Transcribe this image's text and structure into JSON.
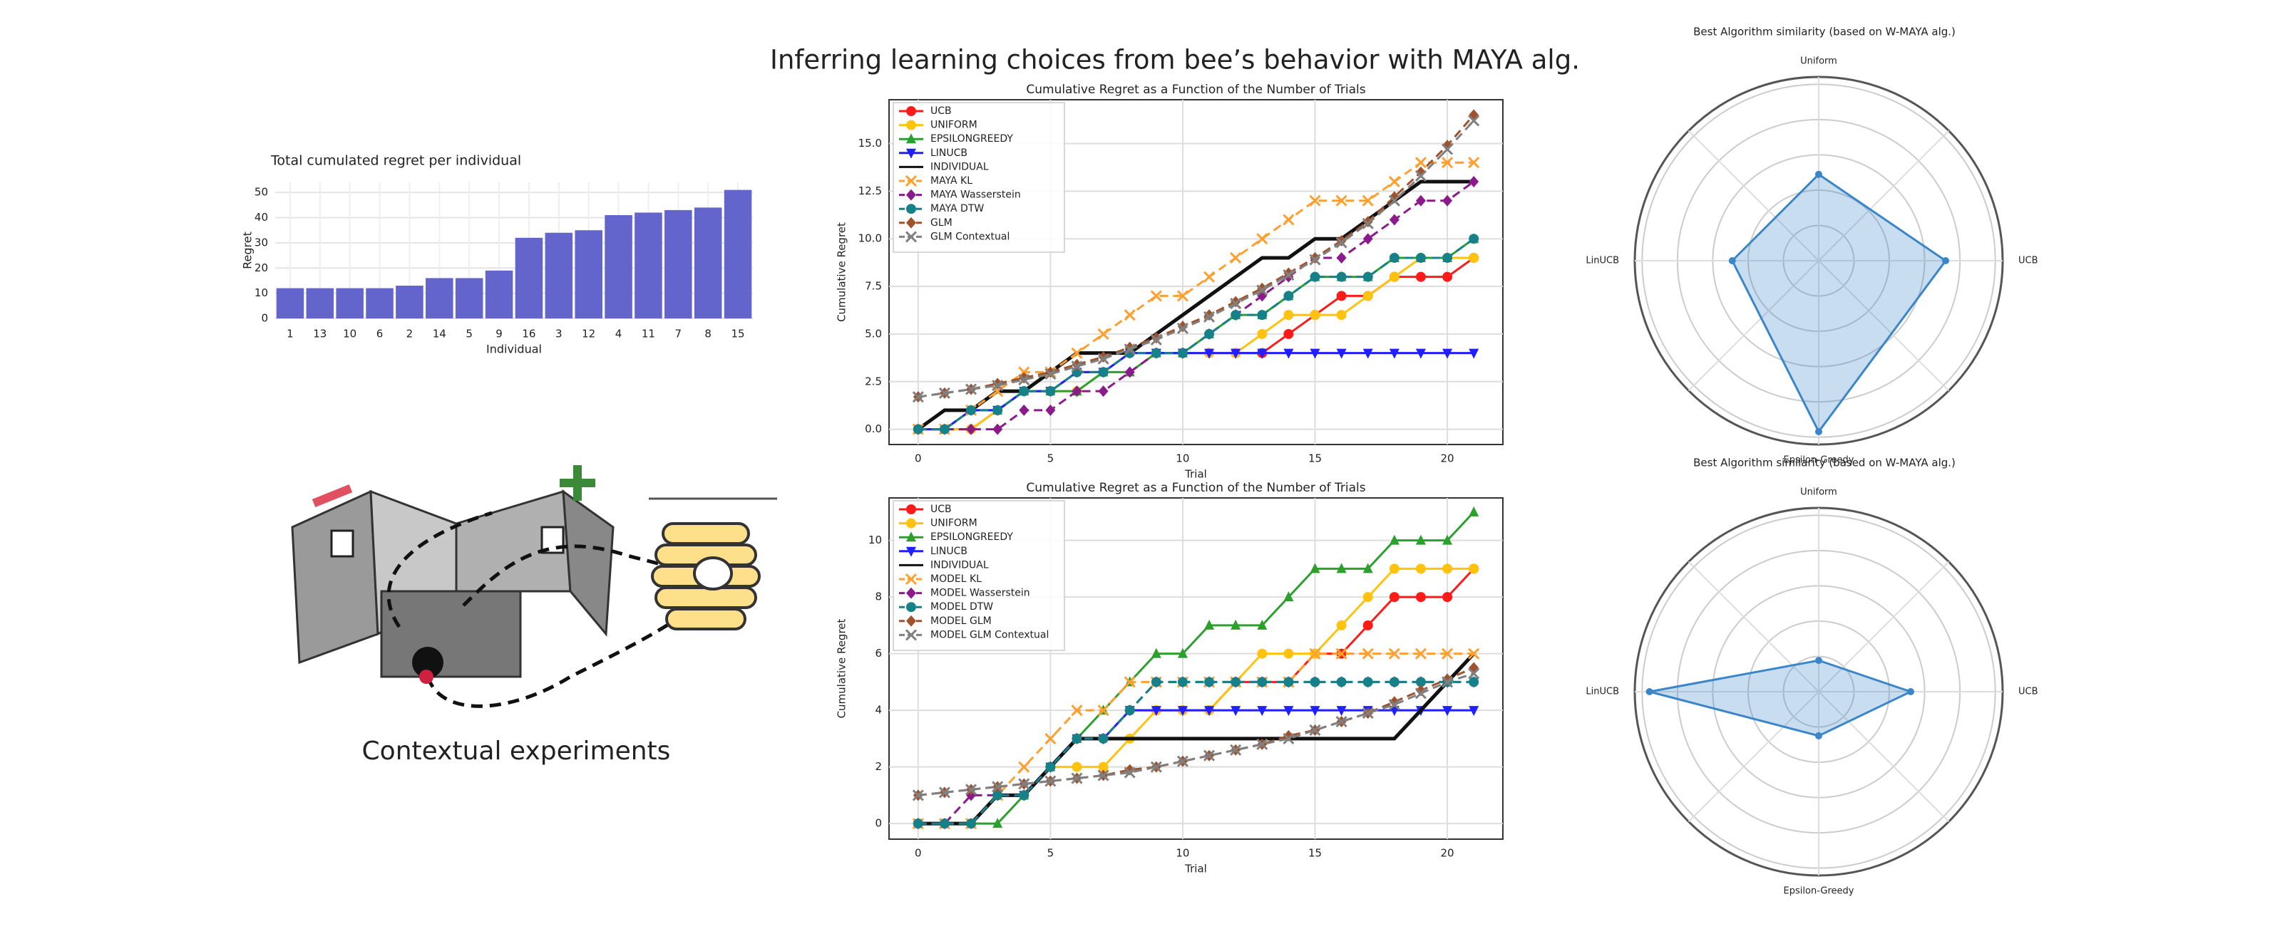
{
  "header": {
    "title": "Inferring learning choices from bee’s behavior with MAYA alg.",
    "caption": "Contextual experiments"
  },
  "chart_data": [
    {
      "type": "bar",
      "title": "Total cumulated regret per individual",
      "xlabel": "Individual",
      "ylabel": "Regret",
      "categories": [
        "1",
        "13",
        "10",
        "6",
        "2",
        "14",
        "5",
        "9",
        "16",
        "3",
        "12",
        "4",
        "11",
        "7",
        "8",
        "15"
      ],
      "values": [
        12,
        12,
        12,
        12,
        13,
        16,
        16,
        19,
        32,
        34,
        35,
        41,
        42,
        43,
        44,
        51
      ],
      "color": "#6464cd",
      "ylim": [
        0,
        54
      ],
      "yticks": [
        0,
        10,
        20,
        30,
        40,
        50
      ],
      "grid": true
    },
    {
      "type": "line",
      "title": "Cumulative Regret as a Function of the Number of Trials",
      "xlabel": "Trial",
      "ylabel": "Cumulative Regret",
      "x": [
        0,
        1,
        2,
        3,
        4,
        5,
        6,
        7,
        8,
        9,
        10,
        11,
        12,
        13,
        14,
        15,
        16,
        17,
        18,
        19,
        20,
        21
      ],
      "xlim": [
        -1.1,
        22.1
      ],
      "xticks": [
        0,
        5,
        10,
        15,
        20
      ],
      "ylim": [
        -0.8,
        17.3
      ],
      "yticks": [
        {
          "value": 0,
          "label": "0.0"
        },
        2.5,
        {
          "value": 5,
          "label": "5.0"
        },
        7.5,
        {
          "value": 10,
          "label": "10.0"
        },
        12.5,
        {
          "value": 15,
          "label": "15.0"
        }
      ],
      "grid": true,
      "legend": "upper left",
      "series": [
        {
          "name": "UCB",
          "color": "#ff1a1a",
          "line_style": "solid",
          "marker": "circle",
          "values": [
            0,
            0,
            0,
            1,
            2,
            2,
            3,
            3,
            4,
            4,
            4,
            4,
            4,
            4,
            5,
            6,
            7,
            7,
            8,
            8,
            8,
            9
          ]
        },
        {
          "name": "UNIFORM",
          "color": "#ffc20e",
          "line_style": "solid",
          "marker": "circle",
          "values": [
            0,
            0,
            0,
            1,
            2,
            2,
            2,
            3,
            4,
            4,
            4,
            4,
            4,
            5,
            6,
            6,
            6,
            7,
            8,
            9,
            9,
            9
          ]
        },
        {
          "name": "EPSILONGREEDY",
          "color": "#2ca02c",
          "line_style": "solid",
          "marker": "triangle-up",
          "values": [
            0,
            0,
            1,
            1,
            2,
            2,
            2,
            3,
            3,
            4,
            4,
            5,
            6,
            6,
            7,
            8,
            8,
            8,
            9,
            9,
            9,
            10
          ]
        },
        {
          "name": "LINUCB",
          "color": "#1f1fff",
          "line_style": "solid",
          "marker": "triangle-down",
          "values": [
            0,
            0,
            1,
            1,
            2,
            2,
            3,
            3,
            4,
            4,
            4,
            4,
            4,
            4,
            4,
            4,
            4,
            4,
            4,
            4,
            4,
            4
          ]
        },
        {
          "name": "INDIVIDUAL",
          "color": "#111111",
          "line_style": "solid",
          "marker": "none",
          "values": [
            0,
            1,
            1,
            2,
            2,
            3,
            4,
            4,
            4,
            5,
            6,
            7,
            8,
            9,
            9,
            10,
            10,
            11,
            12,
            13,
            13,
            13
          ]
        },
        {
          "name": "MAYA KL",
          "color": "#ff9f2e",
          "line_style": "dashed",
          "marker": "x",
          "values": [
            0,
            0,
            1,
            2,
            3,
            3,
            4,
            5,
            6,
            7,
            7,
            8,
            9,
            10,
            11,
            12,
            12,
            12,
            13,
            14,
            14,
            14
          ]
        },
        {
          "name": "MAYA Wasserstein",
          "color": "#8b1a8b",
          "line_style": "dashed",
          "marker": "diamond",
          "values": [
            0,
            0,
            0,
            0,
            1,
            1,
            2,
            2,
            3,
            4,
            4,
            5,
            6,
            7,
            8,
            9,
            9,
            10,
            11,
            12,
            12,
            13
          ]
        },
        {
          "name": "MAYA DTW",
          "color": "#17818a",
          "line_style": "dashed",
          "marker": "circle",
          "values": [
            0,
            0,
            1,
            1,
            2,
            2,
            3,
            3,
            4,
            4,
            4,
            5,
            6,
            6,
            7,
            8,
            8,
            8,
            9,
            9,
            9,
            10
          ]
        },
        {
          "name": "GLM",
          "color": "#a0522d",
          "line_style": "dashed",
          "marker": "diamond",
          "values": [
            1.7,
            1.9,
            2.1,
            2.4,
            2.7,
            3.0,
            3.4,
            3.8,
            4.3,
            4.8,
            5.4,
            6.0,
            6.7,
            7.4,
            8.2,
            9.0,
            9.9,
            10.9,
            12.2,
            13.5,
            14.9,
            16.5
          ]
        },
        {
          "name": "GLM Contextual",
          "color": "#808080",
          "line_style": "dashed",
          "marker": "x",
          "values": [
            1.7,
            1.9,
            2.1,
            2.3,
            2.6,
            2.9,
            3.3,
            3.7,
            4.2,
            4.7,
            5.3,
            5.9,
            6.6,
            7.3,
            8.1,
            8.9,
            9.8,
            10.8,
            12.0,
            13.3,
            14.7,
            16.2
          ]
        }
      ]
    },
    {
      "type": "line",
      "title": "Cumulative Regret as a Function of the Number of Trials",
      "xlabel": "Trial",
      "ylabel": "Cumulative Regret",
      "x": [
        0,
        1,
        2,
        3,
        4,
        5,
        6,
        7,
        8,
        9,
        10,
        11,
        12,
        13,
        14,
        15,
        16,
        17,
        18,
        19,
        20,
        21
      ],
      "xlim": [
        -1.1,
        22.1
      ],
      "xticks": [
        0,
        5,
        10,
        15,
        20
      ],
      "ylim": [
        -0.55,
        11.5
      ],
      "yticks": [
        0,
        2,
        4,
        6,
        8,
        10
      ],
      "grid": true,
      "legend": "upper left",
      "series": [
        {
          "name": "UCB",
          "color": "#ff1a1a",
          "line_style": "solid",
          "marker": "circle",
          "values": [
            0,
            0,
            0,
            1,
            1,
            2,
            3,
            3,
            4,
            4,
            4,
            4,
            5,
            5,
            5,
            6,
            6,
            7,
            8,
            8,
            8,
            9
          ]
        },
        {
          "name": "UNIFORM",
          "color": "#ffc20e",
          "line_style": "solid",
          "marker": "circle",
          "values": [
            0,
            0,
            0,
            1,
            1,
            2,
            2,
            2,
            3,
            4,
            4,
            4,
            5,
            6,
            6,
            6,
            7,
            8,
            9,
            9,
            9,
            9
          ]
        },
        {
          "name": "EPSILONGREEDY",
          "color": "#2ca02c",
          "line_style": "solid",
          "marker": "triangle-up",
          "values": [
            0,
            0,
            0,
            0,
            1,
            2,
            3,
            4,
            5,
            6,
            6,
            7,
            7,
            7,
            8,
            9,
            9,
            9,
            10,
            10,
            10,
            11
          ]
        },
        {
          "name": "LINUCB",
          "color": "#1f1fff",
          "line_style": "solid",
          "marker": "triangle-down",
          "values": [
            0,
            0,
            0,
            1,
            1,
            2,
            3,
            3,
            4,
            4,
            4,
            4,
            4,
            4,
            4,
            4,
            4,
            4,
            4,
            4,
            4,
            4
          ]
        },
        {
          "name": "INDIVIDUAL",
          "color": "#111111",
          "line_style": "solid",
          "marker": "none",
          "values": [
            0,
            0,
            0,
            1,
            1,
            2,
            3,
            3,
            3,
            3,
            3,
            3,
            3,
            3,
            3,
            3,
            3,
            3,
            3,
            4,
            5,
            6
          ]
        },
        {
          "name": "MODEL KL",
          "color": "#ff9f2e",
          "line_style": "dashed",
          "marker": "x",
          "values": [
            0,
            0,
            0,
            1,
            2,
            3,
            4,
            4,
            5,
            5,
            5,
            5,
            5,
            5,
            5,
            6,
            6,
            6,
            6,
            6,
            6,
            6
          ]
        },
        {
          "name": "MODEL Wasserstein",
          "color": "#8b1a8b",
          "line_style": "dashed",
          "marker": "diamond",
          "values": [
            0,
            0,
            1,
            1,
            1,
            2,
            3,
            3,
            4,
            5,
            5,
            5,
            5,
            5,
            5,
            5,
            5,
            5,
            5,
            5,
            5,
            5
          ]
        },
        {
          "name": "MODEL DTW",
          "color": "#17818a",
          "line_style": "dashed",
          "marker": "circle",
          "values": [
            0,
            0,
            0,
            1,
            1,
            2,
            3,
            3,
            4,
            5,
            5,
            5,
            5,
            5,
            5,
            5,
            5,
            5,
            5,
            5,
            5,
            5
          ]
        },
        {
          "name": "MODEL GLM",
          "color": "#a0522d",
          "line_style": "dashed",
          "marker": "diamond",
          "values": [
            1.0,
            1.1,
            1.2,
            1.3,
            1.4,
            1.5,
            1.6,
            1.7,
            1.9,
            2.0,
            2.2,
            2.4,
            2.6,
            2.8,
            3.1,
            3.3,
            3.6,
            3.9,
            4.3,
            4.7,
            5.1,
            5.5
          ]
        },
        {
          "name": "MODEL GLM Contextual",
          "color": "#808080",
          "line_style": "dashed",
          "marker": "x",
          "values": [
            1.0,
            1.1,
            1.2,
            1.3,
            1.4,
            1.5,
            1.6,
            1.7,
            1.8,
            2.0,
            2.2,
            2.4,
            2.6,
            2.8,
            3.0,
            3.3,
            3.6,
            3.9,
            4.2,
            4.6,
            5.0,
            5.3
          ]
        }
      ]
    },
    {
      "type": "radar",
      "title": "Best Algorithm similarity  (based on W-MAYA alg.)",
      "categories": [
        "Uniform",
        "UCB",
        "Epsilon-Greedy",
        "LinUCB"
      ],
      "values": [
        0.47,
        0.69,
        0.93,
        0.47
      ],
      "color": "#3a86c8",
      "rlim": [
        0,
        1
      ]
    },
    {
      "type": "radar",
      "title": "Best Algorithm similarity  (based on W-MAYA alg.)",
      "categories": [
        "Uniform",
        "UCB",
        "Epsilon-Greedy",
        "LinUCB"
      ],
      "values": [
        0.17,
        0.5,
        0.24,
        0.92
      ],
      "color": "#3a86c8",
      "rlim": [
        0,
        1
      ]
    }
  ]
}
